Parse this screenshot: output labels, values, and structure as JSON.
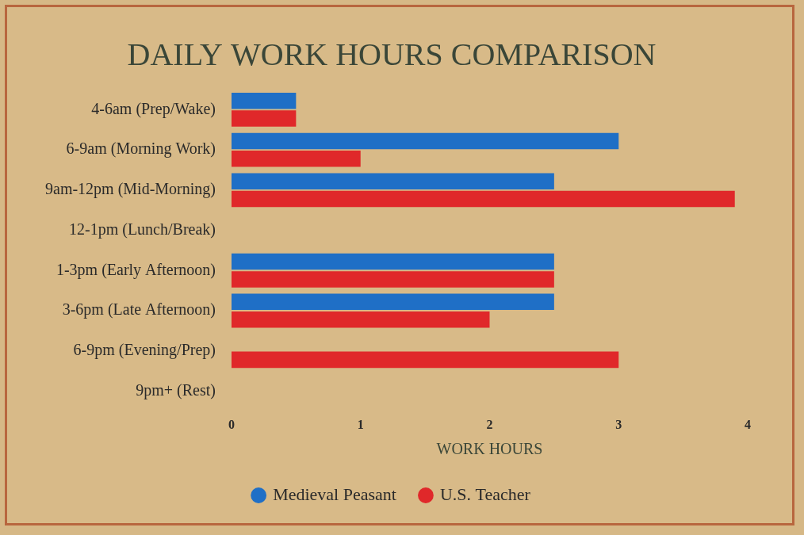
{
  "chart_data": {
    "type": "bar",
    "orientation": "horizontal",
    "title": "DAILY WORK HOURS COMPARISON",
    "xlabel": "WORK HOURS",
    "categories": [
      "4-6am (Prep/Wake)",
      "6-9am (Morning Work)",
      "9am-12pm (Mid-Morning)",
      "12-1pm (Lunch/Break)",
      "1-3pm (Early Afternoon)",
      "3-6pm (Late Afternoon)",
      "6-9pm (Evening/Prep)",
      "9pm+ (Rest)"
    ],
    "series": [
      {
        "name": "Medieval Peasant",
        "color": "#1f6fc6",
        "values": [
          0.5,
          3,
          2.5,
          0,
          2.5,
          2.5,
          0,
          0
        ]
      },
      {
        "name": "U.S. Teacher",
        "color": "#e0282a",
        "values": [
          0.5,
          1,
          3.9,
          0,
          2.5,
          2,
          3,
          0
        ]
      }
    ],
    "xlim": [
      0,
      4
    ],
    "xticks": [
      0,
      1,
      2,
      3,
      4
    ],
    "grid": false,
    "legend": "bottom"
  }
}
